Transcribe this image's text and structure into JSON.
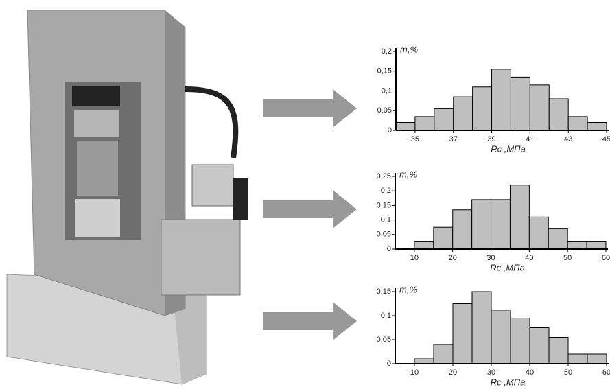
{
  "chart_data": [
    {
      "type": "histogram",
      "ylabel": "m,%",
      "xlabel": "Rc ,МПа",
      "color": "#bfbfbf",
      "bins": [
        34,
        35,
        36,
        37,
        38,
        39,
        40,
        41,
        42,
        43,
        44,
        45
      ],
      "values": [
        0.02,
        0.035,
        0.055,
        0.085,
        0.11,
        0.155,
        0.135,
        0.115,
        0.08,
        0.035,
        0.02
      ],
      "xlim": [
        34,
        45
      ],
      "xticks": [
        35,
        37,
        39,
        41,
        43,
        45
      ],
      "ylim": [
        0,
        0.2
      ],
      "yticks": [
        0,
        {
          "value": 0.05,
          "label": "0,05"
        },
        {
          "value": 0.1,
          "label": "0,1"
        },
        {
          "value": 0.15,
          "label": "0,15"
        },
        {
          "value": 0.2,
          "label": "0,2"
        }
      ]
    },
    {
      "type": "histogram",
      "ylabel": "m,%",
      "xlabel": "Rc ,МПа",
      "color": "#bfbfbf",
      "bins": [
        5,
        10,
        15,
        20,
        25,
        30,
        35,
        40,
        45,
        50,
        55,
        60
      ],
      "values": [
        0,
        0.025,
        0.075,
        0.135,
        0.17,
        0.17,
        0.22,
        0.11,
        0.07,
        0.025,
        0.025
      ],
      "xlim": [
        5,
        60
      ],
      "xticks": [
        10,
        20,
        30,
        40,
        50,
        60
      ],
      "ylim": [
        0,
        0.25
      ],
      "yticks": [
        0,
        {
          "value": 0.05,
          "label": "0,05"
        },
        {
          "value": 0.1,
          "label": "0,1"
        },
        {
          "value": 0.15,
          "label": "0,15"
        },
        {
          "value": 0.2,
          "label": "0,2"
        },
        {
          "value": 0.25,
          "label": "0,25"
        }
      ]
    },
    {
      "type": "histogram",
      "ylabel": "m,%",
      "xlabel": "Rc ,МПа",
      "color": "#bfbfbf",
      "bins": [
        5,
        10,
        15,
        20,
        25,
        30,
        35,
        40,
        45,
        50,
        55,
        60
      ],
      "values": [
        0,
        0.01,
        0.04,
        0.125,
        0.15,
        0.11,
        0.095,
        0.075,
        0.055,
        0.02,
        0.02
      ],
      "xlim": [
        5,
        60
      ],
      "xticks": [
        10,
        20,
        30,
        40,
        50,
        60
      ],
      "ylim": [
        0,
        0.15
      ],
      "yticks": [
        0,
        {
          "value": 0.05,
          "label": "0,05"
        },
        {
          "value": 0.1,
          "label": "0,1"
        },
        {
          "value": 0.15,
          "label": "0,15"
        }
      ]
    }
  ]
}
